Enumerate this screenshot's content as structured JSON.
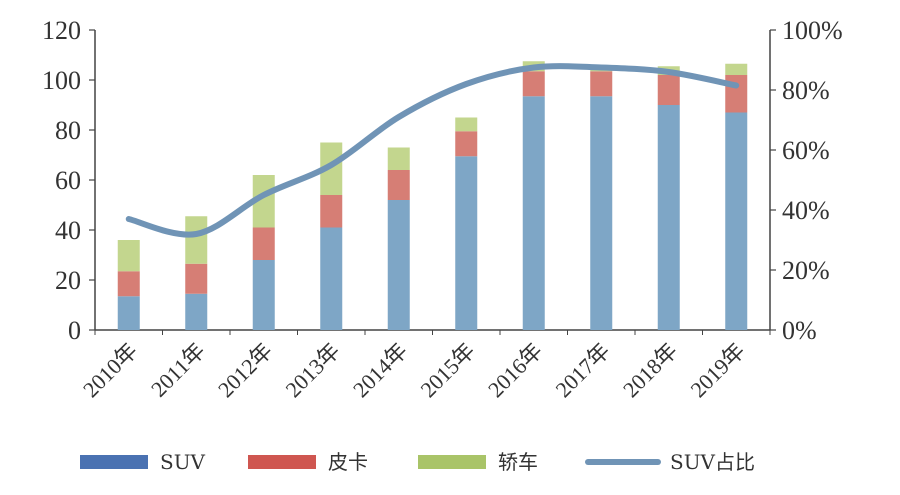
{
  "chart_data": {
    "type": "bar",
    "stacked": true,
    "categories": [
      "2010年",
      "2011年",
      "2012年",
      "2013年",
      "2014年",
      "2015年",
      "2016年",
      "2017年",
      "2018年",
      "2019年"
    ],
    "series": [
      {
        "name": "SUV",
        "type": "bar",
        "axis": "left",
        "color": "#7ea6c6",
        "legend_color": "#4a72b2",
        "values": [
          13.5,
          14.5,
          28,
          41,
          52,
          69.5,
          93.5,
          93.5,
          90,
          87
        ]
      },
      {
        "name": "皮卡",
        "type": "bar",
        "axis": "left",
        "color": "#d67e75",
        "legend_color": "#cf5650",
        "values": [
          10,
          12,
          13,
          13,
          12,
          10,
          10,
          10,
          12,
          15
        ]
      },
      {
        "name": "轿车",
        "type": "bar",
        "axis": "left",
        "color": "#c3d68e",
        "legend_color": "#a9c468",
        "values": [
          12.5,
          19,
          21,
          21,
          9,
          5.5,
          4,
          0.5,
          3.5,
          4.5
        ]
      },
      {
        "name": "SUV占比",
        "type": "line",
        "axis": "right",
        "color": "#7094b6",
        "values": [
          0.37,
          0.32,
          0.45,
          0.55,
          0.71,
          0.82,
          0.875,
          0.875,
          0.86,
          0.815
        ]
      }
    ],
    "y_left": {
      "min": 0,
      "max": 120,
      "ticks": [
        0,
        20,
        40,
        60,
        80,
        100,
        120
      ]
    },
    "y_right": {
      "min": 0,
      "max": 1,
      "ticks": [
        0,
        0.2,
        0.4,
        0.6,
        0.8,
        1.0
      ],
      "tick_labels": [
        "0%",
        "20%",
        "40%",
        "60%",
        "80%",
        "100%"
      ]
    },
    "legend_position": "bottom",
    "grid": false,
    "title": "",
    "xlabel": "",
    "ylabel": ""
  }
}
